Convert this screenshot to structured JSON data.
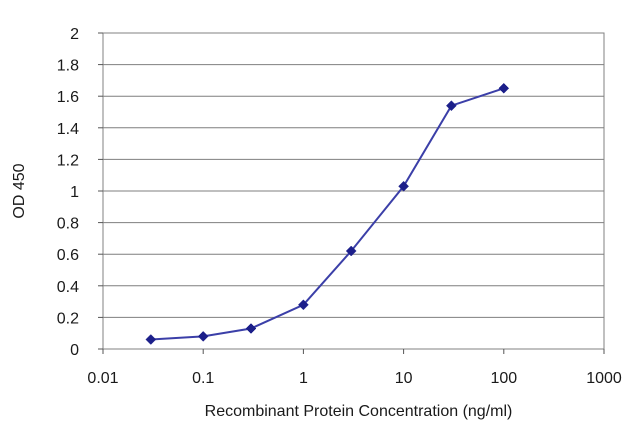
{
  "chart_data": {
    "type": "line",
    "title": "",
    "xlabel": "Recombinant Protein Concentration (ng/ml)",
    "ylabel": "OD 450",
    "x_scale": "log",
    "xlim": [
      0.01,
      1000
    ],
    "ylim": [
      0,
      2
    ],
    "x_ticks": [
      0.01,
      0.1,
      1,
      10,
      100,
      1000
    ],
    "x_tick_labels": [
      "0.01",
      "0.1",
      "1",
      "10",
      "100",
      "1000"
    ],
    "y_ticks": [
      0,
      0.2,
      0.4,
      0.6,
      0.8,
      1,
      1.2,
      1.4,
      1.6,
      1.8,
      2
    ],
    "y_tick_labels": [
      "0",
      "0.2",
      "0.4",
      "0.6",
      "0.8",
      "1",
      "1.2",
      "1.4",
      "1.6",
      "1.8",
      "2"
    ],
    "grid": "horizontal",
    "legend": "none",
    "series": [
      {
        "x": [
          0.03,
          0.1,
          0.3,
          1,
          3,
          10,
          30,
          100
        ],
        "values": [
          0.06,
          0.08,
          0.13,
          0.28,
          0.62,
          1.03,
          1.54,
          1.65
        ],
        "color": "#3b3fa8",
        "marker": "diamond",
        "marker_color": "#1c1f8a"
      }
    ]
  }
}
